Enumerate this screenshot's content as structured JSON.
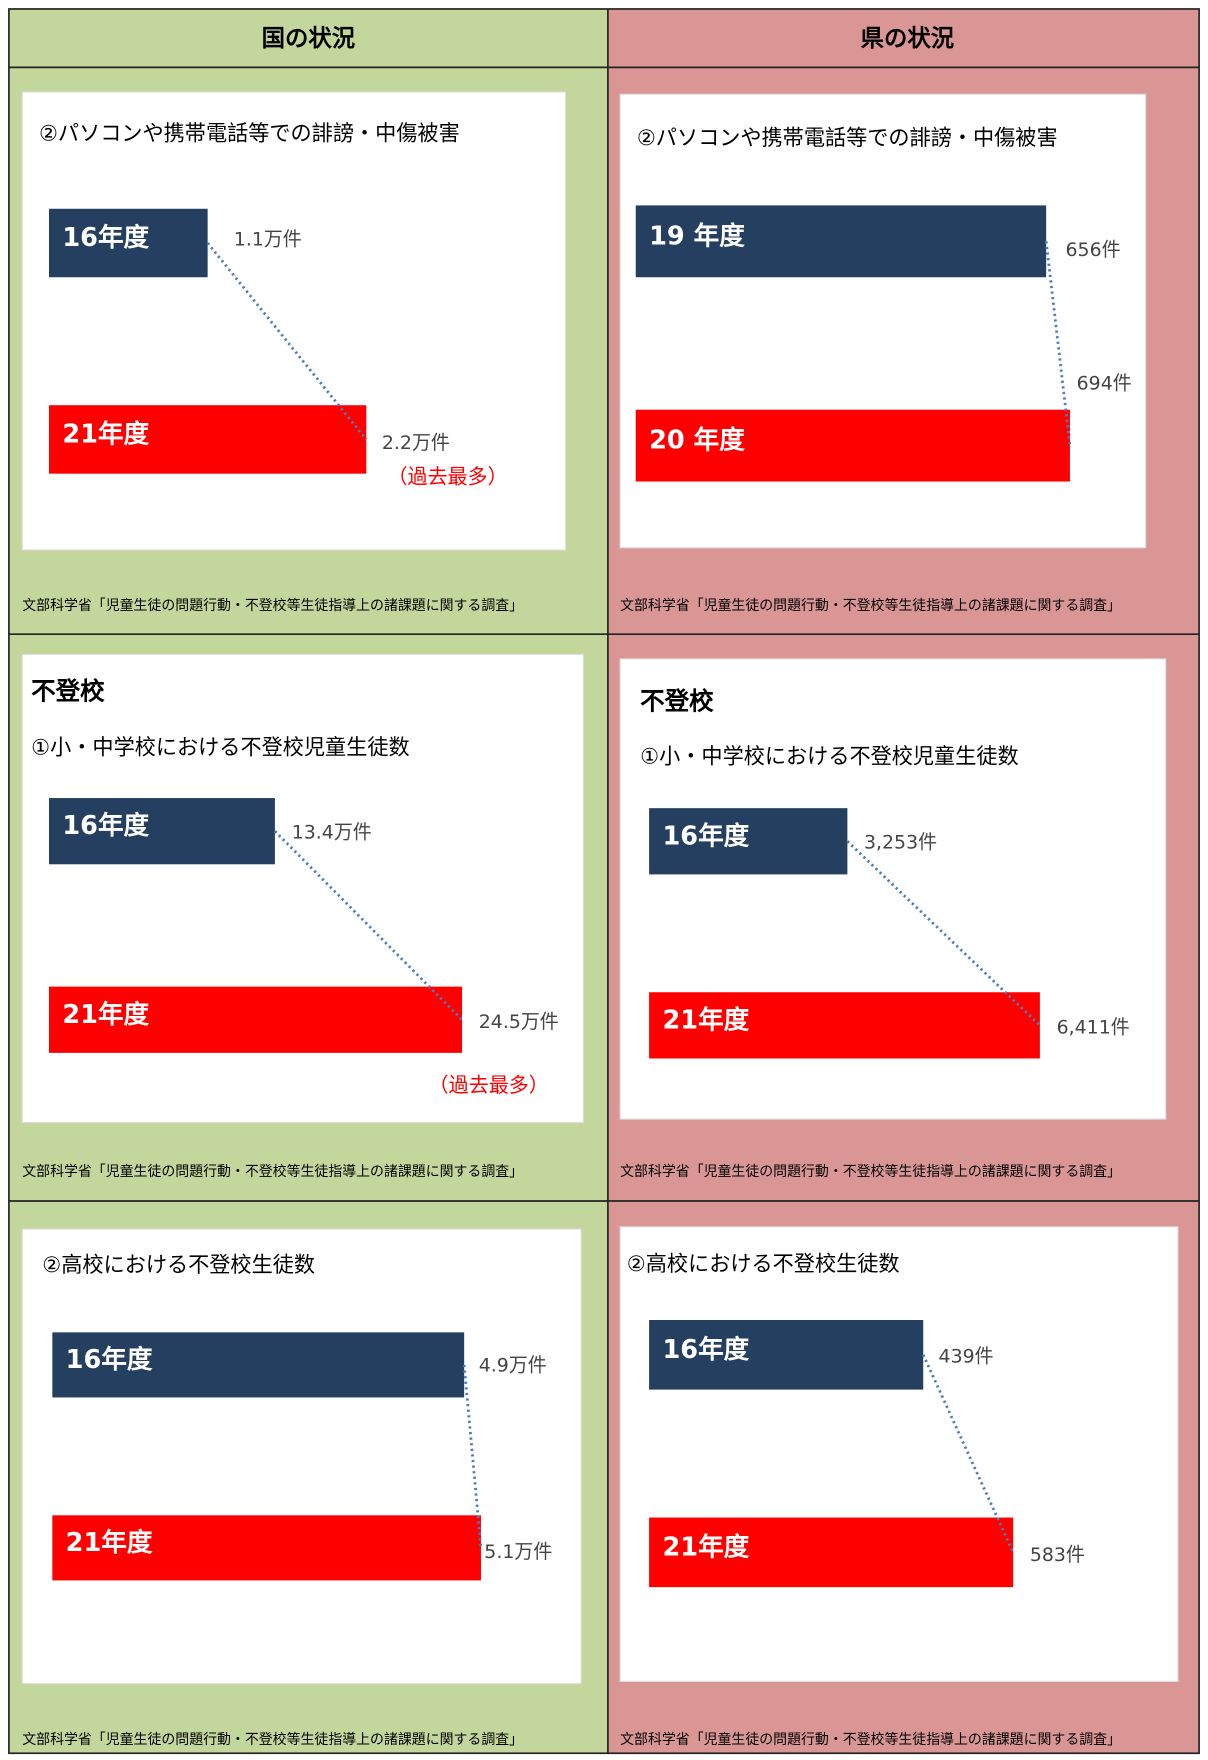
{
  "table": {
    "headers": [
      "国の状況",
      "県の状況"
    ],
    "rows": [
      [
        {
          "title": "②パソコンや携帯電話等での誹謗・中傷被害",
          "chart": {
            "type": "bar",
            "categories": [
              "16年度",
              "21年度"
            ],
            "values": [
              1.1,
              2.2
            ],
            "value_labels": [
              "1.1万件",
              "2.2万件"
            ]
          },
          "note": "（過去最多）",
          "source": "文部科学省「児童生徒の問題行動・不登校等生徒指導上の諸課題に関する調査」"
        },
        {
          "title": "②パソコンや携帯電話等での誹謗・中傷被害",
          "chart": {
            "type": "bar",
            "categories": [
              "19 年度",
              "20 年度"
            ],
            "values": [
              656,
              694
            ],
            "value_labels": [
              "656件",
              "694件"
            ]
          },
          "source": "文部科学省「児童生徒の問題行動・不登校等生徒指導上の諸課題に関する調査」"
        }
      ],
      [
        {
          "heading": "不登校",
          "title": "①小・中学校における不登校児童生徒数",
          "chart": {
            "type": "bar",
            "categories": [
              "16年度",
              "21年度"
            ],
            "values": [
              13.4,
              24.5
            ],
            "value_labels": [
              "13.4万件",
              "24.5万件"
            ]
          },
          "note": "（過去最多）",
          "source": "文部科学省「児童生徒の問題行動・不登校等生徒指導上の諸課題に関する調査」"
        },
        {
          "heading": "不登校",
          "title": "①小・中学校における不登校児童生徒数",
          "chart": {
            "type": "bar",
            "categories": [
              "16年度",
              "21年度"
            ],
            "values": [
              3253,
              6411
            ],
            "value_labels": [
              "3,253件",
              "6,411件"
            ]
          },
          "source": "文部科学省「児童生徒の問題行動・不登校等生徒指導上の諸課題に関する調査」"
        }
      ],
      [
        {
          "title": "②高校における不登校生徒数",
          "chart": {
            "type": "bar",
            "categories": [
              "16年度",
              "21年度"
            ],
            "values": [
              4.9,
              5.1
            ],
            "value_labels": [
              "4.9万件",
              "5.1万件"
            ]
          },
          "source": "文部科学省「児童生徒の問題行動・不登校等生徒指導上の諸課題に関する調査」"
        },
        {
          "title": "②高校における不登校生徒数",
          "chart": {
            "type": "bar",
            "categories": [
              "16年度",
              "21年度"
            ],
            "values": [
              439,
              583
            ],
            "value_labels": [
              "439件",
              "583件"
            ]
          },
          "source": "文部科学省「児童生徒の問題行動・不登校等生徒指導上の諸課題に関する調査」"
        }
      ]
    ]
  }
}
